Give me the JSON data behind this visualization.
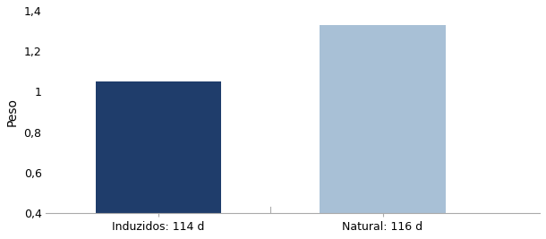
{
  "categories": [
    "Induzidos: 114 d",
    "Natural: 116 d"
  ],
  "values": [
    1.05,
    1.33
  ],
  "bar_colors": [
    "#1f3d6b",
    "#a8c0d6"
  ],
  "ylabel": "Peso",
  "ylim": [
    0.4,
    1.4
  ],
  "yticks": [
    0.4,
    0.6,
    0.8,
    1.0,
    1.2,
    1.4
  ],
  "ytick_labels": [
    "0,4",
    "0,6",
    "0,8",
    "1",
    "1,2",
    "1,4"
  ],
  "background_color": "#ffffff",
  "bar_width": 0.28,
  "ylabel_fontsize": 10,
  "tick_fontsize": 9,
  "xlabel_fontsize": 9,
  "x_positions": [
    0.25,
    0.75
  ],
  "xlim": [
    0.0,
    1.1
  ]
}
